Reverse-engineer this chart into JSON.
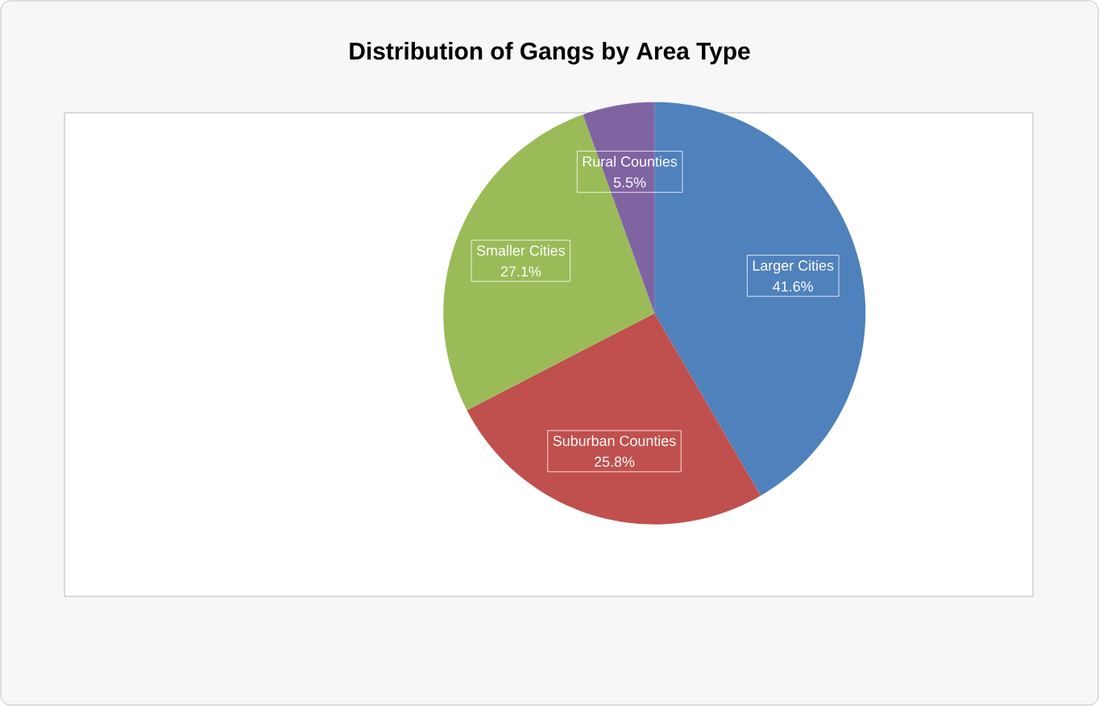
{
  "chart_data": {
    "type": "pie",
    "title": "Distribution of Gangs by Area Type",
    "categories": [
      "Larger Cities",
      "Suburban Counties",
      "Smaller Cities",
      "Rural Counties"
    ],
    "values": [
      41.6,
      25.8,
      27.1,
      5.5
    ],
    "colors": [
      "#4f81bd",
      "#c0504d",
      "#9bbb59",
      "#8064a2"
    ],
    "value_labels": [
      "41.6%",
      "25.8%",
      "27.1%",
      "5.5%"
    ]
  }
}
